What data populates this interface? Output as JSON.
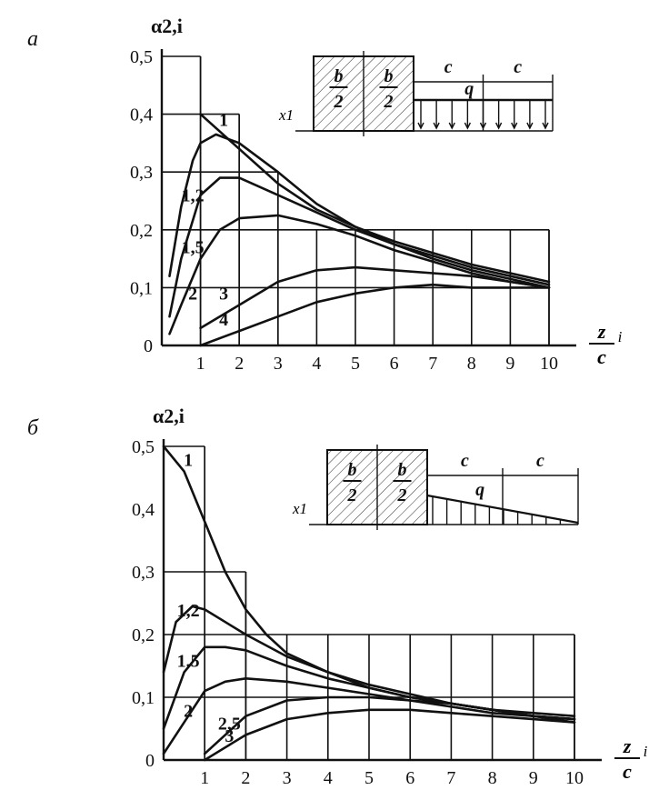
{
  "chart_data": [
    {
      "type": "line",
      "panel_label": "а",
      "ylabel": "α2,i",
      "xlabel_num": "z",
      "xlabel_sub": "i",
      "xlabel_den": "c",
      "xlim": [
        0,
        10
      ],
      "ylim": [
        0,
        0.5
      ],
      "x_ticks": [
        "1",
        "2",
        "3",
        "4",
        "5",
        "6",
        "7",
        "8",
        "9",
        "10"
      ],
      "y_ticks": [
        "0",
        "0,1",
        "0,2",
        "0,3",
        "0,4",
        "0,5"
      ],
      "inset": {
        "half_width": "b",
        "half_den": "2",
        "span": "c",
        "load": "q",
        "offset": "x1",
        "shape": "uniform"
      },
      "series": [
        {
          "label": "1",
          "x": [
            1.0,
            1.5,
            2.0,
            3.0,
            4.0,
            5.0,
            6.0,
            7.0,
            8.0,
            9.0,
            10.0
          ],
          "y": [
            0.4,
            0.37,
            0.34,
            0.28,
            0.235,
            0.205,
            0.18,
            0.16,
            0.14,
            0.125,
            0.11
          ]
        },
        {
          "label": "1,2",
          "x": [
            0.2,
            0.5,
            0.8,
            1.0,
            1.4,
            2.0,
            3.0,
            4.0,
            5.0,
            6.0,
            7.0,
            8.0,
            9.0,
            10.0
          ],
          "y": [
            0.12,
            0.24,
            0.32,
            0.35,
            0.365,
            0.35,
            0.3,
            0.245,
            0.205,
            0.175,
            0.155,
            0.135,
            0.12,
            0.105
          ]
        },
        {
          "label": "1,5",
          "x": [
            0.2,
            0.5,
            1.0,
            1.5,
            2.0,
            3.0,
            4.0,
            5.0,
            6.0,
            7.0,
            8.0,
            9.0,
            10.0
          ],
          "y": [
            0.05,
            0.15,
            0.26,
            0.29,
            0.29,
            0.26,
            0.23,
            0.2,
            0.175,
            0.15,
            0.13,
            0.115,
            0.1
          ]
        },
        {
          "label": "2",
          "x": [
            0.2,
            0.5,
            1.0,
            1.5,
            2.0,
            3.0,
            4.0,
            5.0,
            6.0,
            7.0,
            8.0,
            9.0,
            10.0
          ],
          "y": [
            0.02,
            0.07,
            0.15,
            0.2,
            0.22,
            0.225,
            0.21,
            0.19,
            0.165,
            0.145,
            0.125,
            0.11,
            0.1
          ]
        },
        {
          "label": "3",
          "x": [
            1.0,
            2.0,
            3.0,
            4.0,
            5.0,
            6.0,
            7.0,
            8.0,
            9.0,
            10.0
          ],
          "y": [
            0.03,
            0.07,
            0.11,
            0.13,
            0.135,
            0.13,
            0.125,
            0.12,
            0.11,
            0.1
          ]
        },
        {
          "label": "4",
          "x": [
            1.0,
            2.0,
            3.0,
            4.0,
            5.0,
            6.0,
            7.0,
            8.0,
            9.0,
            10.0
          ],
          "y": [
            0.0,
            0.025,
            0.05,
            0.075,
            0.09,
            0.1,
            0.105,
            0.1,
            0.1,
            0.1
          ]
        }
      ]
    },
    {
      "type": "line",
      "panel_label": "б",
      "ylabel": "α2,i",
      "xlabel_num": "z",
      "xlabel_sub": "i",
      "xlabel_den": "c",
      "xlim": [
        0,
        10
      ],
      "ylim": [
        0,
        0.5
      ],
      "x_ticks": [
        "1",
        "2",
        "3",
        "4",
        "5",
        "6",
        "7",
        "8",
        "9",
        "10"
      ],
      "y_ticks": [
        "0",
        "0,1",
        "0,2",
        "0,3",
        "0,4",
        "0,5"
      ],
      "inset": {
        "half_width": "b",
        "half_den": "2",
        "span": "c",
        "load": "q",
        "offset": "x1",
        "shape": "triangular"
      },
      "series": [
        {
          "label": "1",
          "x": [
            0.0,
            0.5,
            1.0,
            1.5,
            2.0,
            2.5,
            3.0,
            4.0,
            5.0,
            6.0,
            7.0,
            8.0,
            9.0,
            10.0
          ],
          "y": [
            0.5,
            0.46,
            0.38,
            0.3,
            0.24,
            0.2,
            0.17,
            0.14,
            0.115,
            0.1,
            0.09,
            0.08,
            0.075,
            0.07
          ]
        },
        {
          "label": "1,2",
          "x": [
            0.0,
            0.3,
            0.7,
            1.0,
            1.5,
            2.0,
            3.0,
            4.0,
            5.0,
            6.0,
            7.0,
            8.0,
            9.0,
            10.0
          ],
          "y": [
            0.14,
            0.22,
            0.245,
            0.24,
            0.22,
            0.2,
            0.165,
            0.14,
            0.12,
            0.105,
            0.09,
            0.08,
            0.07,
            0.065
          ]
        },
        {
          "label": "1,5",
          "x": [
            0.0,
            0.5,
            1.0,
            1.5,
            2.0,
            3.0,
            4.0,
            5.0,
            6.0,
            7.0,
            8.0,
            9.0,
            10.0
          ],
          "y": [
            0.05,
            0.14,
            0.18,
            0.18,
            0.175,
            0.15,
            0.13,
            0.115,
            0.1,
            0.09,
            0.08,
            0.07,
            0.065
          ]
        },
        {
          "label": "2",
          "x": [
            0.0,
            0.5,
            1.0,
            1.5,
            2.0,
            3.0,
            4.0,
            5.0,
            6.0,
            7.0,
            8.0,
            9.0,
            10.0
          ],
          "y": [
            0.01,
            0.06,
            0.11,
            0.125,
            0.13,
            0.125,
            0.115,
            0.105,
            0.095,
            0.085,
            0.075,
            0.07,
            0.06
          ]
        },
        {
          "label": "2,5",
          "x": [
            1.0,
            1.5,
            2.0,
            3.0,
            4.0,
            5.0,
            6.0,
            7.0,
            8.0,
            9.0,
            10.0
          ],
          "y": [
            0.01,
            0.04,
            0.07,
            0.095,
            0.1,
            0.1,
            0.095,
            0.09,
            0.08,
            0.07,
            0.065
          ]
        },
        {
          "label": "3",
          "x": [
            1.0,
            1.5,
            2.0,
            3.0,
            4.0,
            5.0,
            6.0,
            7.0,
            8.0,
            9.0,
            10.0
          ],
          "y": [
            0.0,
            0.02,
            0.04,
            0.065,
            0.075,
            0.08,
            0.08,
            0.075,
            0.07,
            0.065,
            0.06
          ]
        }
      ]
    }
  ]
}
